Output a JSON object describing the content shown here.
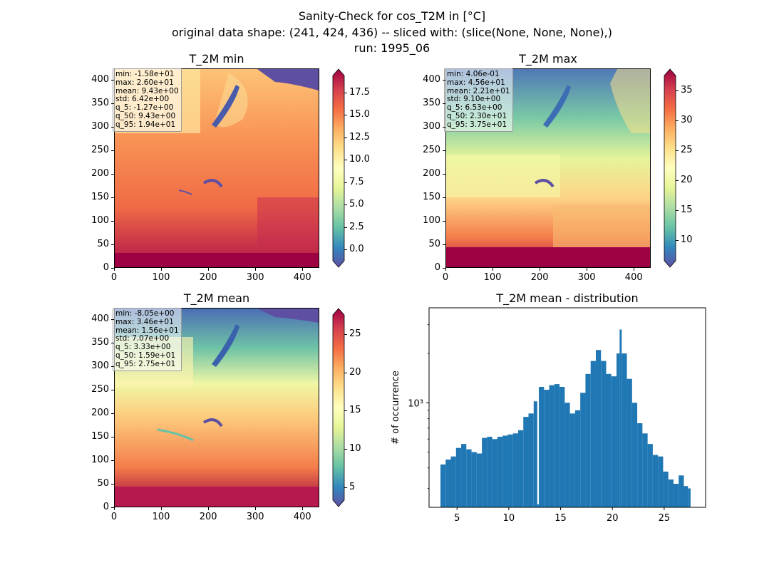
{
  "figure": {
    "title_line1": "Sanity-Check for cos_T2M in [°C]",
    "title_line2": "original data shape: (241, 424, 436) -- sliced with: (slice(None, None, None),)",
    "title_line3": "run: 1995_06"
  },
  "panels": {
    "min": {
      "title": "T_2M min",
      "stats": [
        "min: -1.58e+01",
        "max: 2.60e+01",
        "mean: 9.43e+00",
        "std: 6.42e+00",
        "q_5: -1.27e+00",
        "q_50: 9.43e+00",
        "q_95: 1.94e+01"
      ],
      "colorbar_ticks": [
        "17.5",
        "15.0",
        "12.5",
        "10.0",
        "7.5",
        "5.0",
        "2.5",
        "0.0"
      ],
      "colorbar_range": [
        -1.27,
        19.4
      ]
    },
    "max": {
      "title": "T_2M max",
      "stats": [
        "min: 4.06e-01",
        "max: 4.56e+01",
        "mean: 2.21e+01",
        "std: 9.10e+00",
        "q_5: 6.53e+00",
        "q_50: 2.30e+01",
        "q_95: 3.75e+01"
      ],
      "colorbar_ticks": [
        "35",
        "30",
        "25",
        "20",
        "15",
        "10"
      ],
      "colorbar_range": [
        6.53,
        37.5
      ]
    },
    "mean": {
      "title": "T_2M mean",
      "stats": [
        "min: -8.05e+00",
        "max: 3.46e+01",
        "mean: 1.56e+01",
        "std: 7.07e+00",
        "q_5: 3.33e+00",
        "q_50: 1.59e+01",
        "q_95: 2.75e+01"
      ],
      "colorbar_ticks": [
        "25",
        "20",
        "15",
        "10",
        "5"
      ],
      "colorbar_range": [
        3.33,
        27.5
      ]
    },
    "map_axes": {
      "x_ticks": [
        "0",
        "100",
        "200",
        "300",
        "400"
      ],
      "y_ticks": [
        "400",
        "350",
        "300",
        "250",
        "200",
        "150",
        "100",
        "50",
        "0"
      ]
    }
  },
  "chart_data": {
    "type": "bar",
    "title": "T_2M mean - distribution",
    "xlabel": "",
    "ylabel": "# of occurrence",
    "x_ticks": [
      "5",
      "10",
      "15",
      "20",
      "25"
    ],
    "y_tick_label": "10³",
    "y_scale": "log",
    "xlim": [
      2.3,
      29
    ],
    "ylim": [
      230,
      3800
    ],
    "bins": [
      [
        3.4,
        420
      ],
      [
        3.9,
        450
      ],
      [
        4.4,
        470
      ],
      [
        4.9,
        530
      ],
      [
        5.4,
        560
      ],
      [
        5.9,
        520
      ],
      [
        6.4,
        500
      ],
      [
        6.9,
        490
      ],
      [
        7.4,
        610
      ],
      [
        7.9,
        620
      ],
      [
        8.4,
        600
      ],
      [
        8.9,
        620
      ],
      [
        9.4,
        630
      ],
      [
        9.9,
        640
      ],
      [
        10.4,
        650
      ],
      [
        10.9,
        680
      ],
      [
        11.4,
        820
      ],
      [
        11.9,
        860
      ],
      [
        12.4,
        1020
      ],
      [
        12.75,
        240
      ],
      [
        12.9,
        1250
      ],
      [
        13.4,
        1200
      ],
      [
        13.9,
        1280
      ],
      [
        14.4,
        1300
      ],
      [
        14.9,
        1250
      ],
      [
        15.4,
        1000
      ],
      [
        15.9,
        860
      ],
      [
        16.4,
        900
      ],
      [
        16.9,
        1150
      ],
      [
        17.4,
        1500
      ],
      [
        17.9,
        1800
      ],
      [
        18.4,
        2100
      ],
      [
        18.9,
        1800
      ],
      [
        19.4,
        1500
      ],
      [
        19.9,
        1450
      ],
      [
        20.4,
        2000
      ],
      [
        20.7,
        2800
      ],
      [
        20.9,
        2000
      ],
      [
        21.4,
        1400
      ],
      [
        21.9,
        1000
      ],
      [
        22.4,
        750
      ],
      [
        22.9,
        650
      ],
      [
        23.4,
        560
      ],
      [
        23.9,
        480
      ],
      [
        24.4,
        470
      ],
      [
        24.9,
        380
      ],
      [
        25.4,
        340
      ],
      [
        25.9,
        320
      ],
      [
        26.4,
        360
      ],
      [
        26.9,
        310
      ],
      [
        27.3,
        300
      ]
    ]
  },
  "colors": {
    "bar": "#1f77b4",
    "colormap": [
      "#5e4fa2",
      "#3288bd",
      "#66c2a5",
      "#abdda4",
      "#e6f598",
      "#ffffbf",
      "#fee08b",
      "#fdae61",
      "#f46d43",
      "#d53e4f",
      "#9e0142"
    ]
  }
}
